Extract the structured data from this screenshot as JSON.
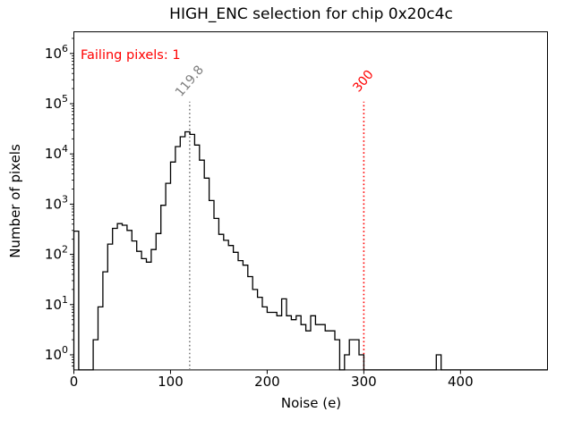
{
  "chart_data": {
    "type": "bar",
    "subtype": "step-histogram",
    "title": "HIGH_ENC selection for chip 0x20c4c",
    "xlabel": "Noise (e)",
    "ylabel": "Number of pixels",
    "xlim": [
      0,
      490
    ],
    "ylim": [
      0.5,
      2700000
    ],
    "yscale": "log",
    "grid": false,
    "legend": "none",
    "xticks": [
      0,
      100,
      200,
      300,
      400
    ],
    "ytick_exponents": [
      0,
      1,
      2,
      3,
      4,
      5,
      6
    ],
    "series_color": "#000000",
    "bin_start": 0,
    "bin_width": 5,
    "counts": [
      290,
      0,
      0,
      0,
      2,
      9,
      45,
      160,
      330,
      410,
      380,
      300,
      185,
      115,
      82,
      70,
      125,
      260,
      950,
      2600,
      6900,
      14000,
      22000,
      27500,
      24500,
      15000,
      7500,
      3300,
      1180,
      520,
      250,
      190,
      150,
      110,
      75,
      61,
      36,
      20,
      14,
      9,
      7,
      7,
      6,
      13,
      6,
      5,
      6,
      4,
      3,
      6,
      4,
      4,
      3,
      3,
      2,
      0,
      1,
      2,
      2,
      1,
      0,
      0,
      0,
      0,
      0,
      0,
      0,
      0,
      0,
      0,
      0,
      0,
      0,
      0,
      0,
      1,
      0,
      0,
      0,
      0,
      0,
      0,
      0,
      0,
      0,
      0,
      0,
      0,
      0,
      0,
      0,
      0,
      0,
      0,
      0,
      0,
      0,
      0
    ],
    "vlines": [
      {
        "x": 119.8,
        "label": "119.8",
        "color": "#7f7f7f",
        "top_value": 110000
      },
      {
        "x": 300,
        "label": "300",
        "color": "#ff0000",
        "top_value": 110000
      }
    ],
    "annotation": {
      "text": "Failing pixels: 1",
      "color": "#ff0000"
    }
  }
}
